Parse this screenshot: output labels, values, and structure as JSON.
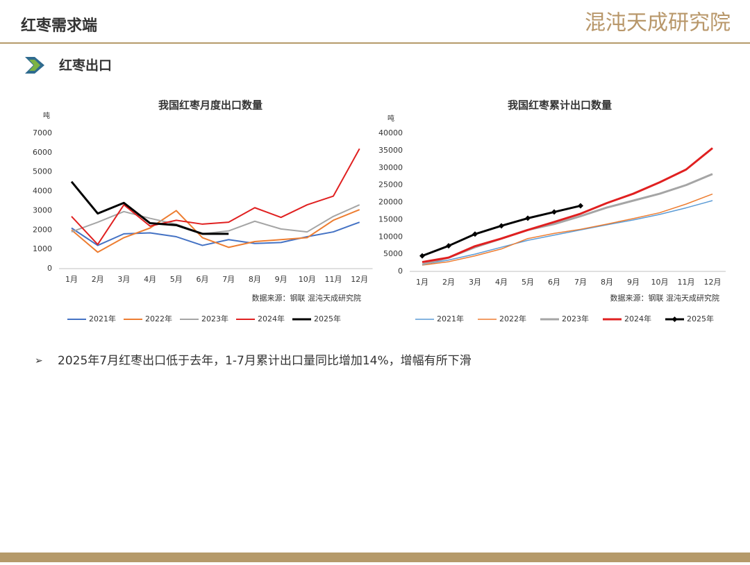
{
  "header": {
    "title": "红枣需求端",
    "logo": "混沌天成研究院",
    "section": "红枣出口",
    "bullet": "2025年7月红枣出口低于去年，1-7月累计出口量同比增加14%，增幅有所下滑"
  },
  "chart_data": [
    {
      "type": "line",
      "title": "我国红枣月度出口数量",
      "y_unit": "吨",
      "source": "数据来源：钢联   混沌天成研究院",
      "categories": [
        "1月",
        "2月",
        "3月",
        "4月",
        "5月",
        "6月",
        "7月",
        "8月",
        "9月",
        "10月",
        "11月",
        "12月"
      ],
      "ylim": [
        0,
        7000
      ],
      "yticks": [
        0,
        1000,
        2000,
        3000,
        4000,
        5000,
        6000,
        7000
      ],
      "series": [
        {
          "name": "2021年",
          "color": "#4472c4",
          "values": [
            2100,
            1200,
            1800,
            1850,
            1650,
            1200,
            1500,
            1300,
            1350,
            1650,
            1900,
            2400
          ]
        },
        {
          "name": "2022年",
          "color": "#ed7d31",
          "values": [
            2000,
            850,
            1600,
            2100,
            3000,
            1600,
            1100,
            1400,
            1500,
            1600,
            2500,
            3050
          ]
        },
        {
          "name": "2023年",
          "color": "#a5a5a5",
          "values": [
            1900,
            2400,
            2950,
            2600,
            2300,
            1800,
            1950,
            2450,
            2050,
            1900,
            2700,
            3300
          ]
        },
        {
          "name": "2024年",
          "color": "#e02020",
          "values": [
            2700,
            1250,
            3300,
            2200,
            2500,
            2300,
            2400,
            3150,
            2650,
            3300,
            3750,
            6200
          ]
        },
        {
          "name": "2025年",
          "color": "#000000",
          "values": [
            4500,
            2850,
            3400,
            2350,
            2250,
            1800,
            1800,
            null,
            null,
            null,
            null,
            null
          ]
        }
      ]
    },
    {
      "type": "line",
      "title": "我国红枣累计出口数量",
      "y_unit": "吨",
      "source": "数据来源：钢联   混沌天成研究院",
      "categories": [
        "1月",
        "2月",
        "3月",
        "4月",
        "5月",
        "6月",
        "7月",
        "8月",
        "9月",
        "10月",
        "11月",
        "12月"
      ],
      "ylim": [
        0,
        40000
      ],
      "yticks": [
        0,
        5000,
        10000,
        15000,
        20000,
        25000,
        30000,
        35000,
        40000
      ],
      "series": [
        {
          "name": "2021年",
          "color": "#5b9bd5",
          "values": [
            2000,
            3300,
            5000,
            7000,
            9000,
            10500,
            12000,
            13500,
            14900,
            16500,
            18400,
            20500
          ]
        },
        {
          "name": "2022年",
          "color": "#ed7d31",
          "values": [
            1800,
            2800,
            4500,
            6500,
            9500,
            11000,
            12200,
            13700,
            15300,
            17000,
            19500,
            22400
          ]
        },
        {
          "name": "2023年",
          "color": "#a5a5a5",
          "values": [
            2000,
            4000,
            7000,
            9500,
            12000,
            13700,
            16000,
            18500,
            20500,
            22500,
            25000,
            28200
          ]
        },
        {
          "name": "2024年",
          "color": "#e02020",
          "values": [
            2700,
            4000,
            7300,
            9500,
            12000,
            14300,
            16700,
            19800,
            22500,
            25800,
            29500,
            35700
          ]
        },
        {
          "name": "2025年",
          "color": "#000000",
          "marker": "diamond",
          "values": [
            4500,
            7400,
            10800,
            13200,
            15400,
            17200,
            19000,
            null,
            null,
            null,
            null,
            null
          ]
        }
      ]
    }
  ]
}
